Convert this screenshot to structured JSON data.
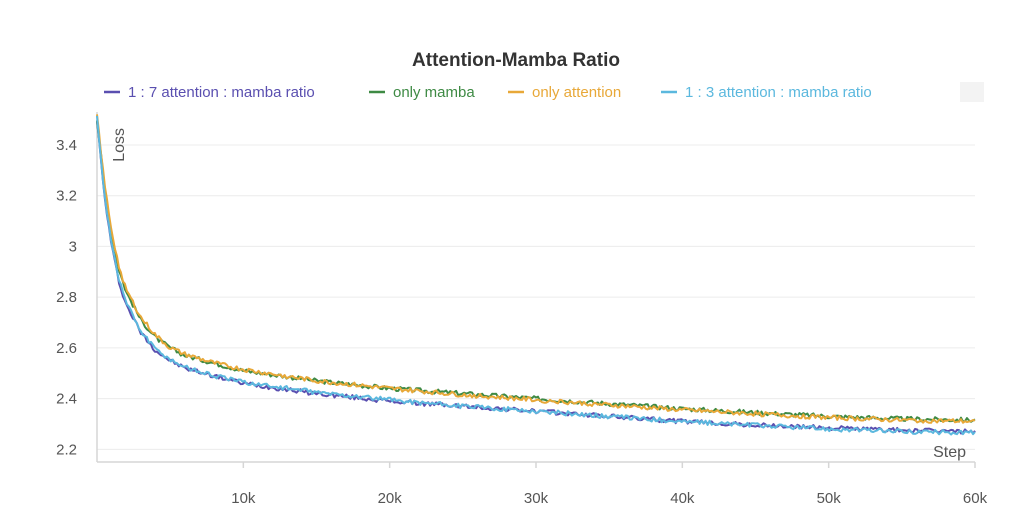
{
  "chart_data": {
    "type": "line",
    "title": "Attention-Mamba Ratio",
    "xlabel": "Step",
    "ylabel": "Loss",
    "xlim": [
      0,
      60000
    ],
    "ylim": [
      2.15,
      3.53
    ],
    "grid": true,
    "legend_position": "top",
    "x_ticks": [
      {
        "value": 10000,
        "label": "10k"
      },
      {
        "value": 20000,
        "label": "20k"
      },
      {
        "value": 30000,
        "label": "30k"
      },
      {
        "value": 40000,
        "label": "40k"
      },
      {
        "value": 50000,
        "label": "50k"
      },
      {
        "value": 60000,
        "label": "60k"
      }
    ],
    "y_ticks": [
      {
        "value": 2.2,
        "label": "2.2"
      },
      {
        "value": 2.4,
        "label": "2.4"
      },
      {
        "value": 2.6,
        "label": "2.6"
      },
      {
        "value": 2.8,
        "label": "2.8"
      },
      {
        "value": 3.0,
        "label": "3"
      },
      {
        "value": 3.2,
        "label": "3.2"
      },
      {
        "value": 3.4,
        "label": "3.4"
      }
    ],
    "x": [
      0,
      500,
      1000,
      1500,
      2000,
      3000,
      4000,
      5000,
      6000,
      8000,
      10000,
      15000,
      20000,
      25000,
      30000,
      35000,
      40000,
      45000,
      50000,
      55000,
      60000
    ],
    "series": [
      {
        "name": "1 : 7 attention : mamba ratio",
        "color": "#5a4fb0",
        "values": [
          3.5,
          3.2,
          3.0,
          2.86,
          2.77,
          2.66,
          2.59,
          2.55,
          2.52,
          2.49,
          2.46,
          2.42,
          2.39,
          2.37,
          2.35,
          2.33,
          2.31,
          2.295,
          2.285,
          2.275,
          2.27
        ]
      },
      {
        "name": "only mamba",
        "color": "#3e8a44",
        "values": [
          3.5,
          3.24,
          3.05,
          2.91,
          2.82,
          2.71,
          2.64,
          2.6,
          2.57,
          2.54,
          2.51,
          2.47,
          2.44,
          2.42,
          2.4,
          2.38,
          2.36,
          2.345,
          2.33,
          2.32,
          2.315
        ]
      },
      {
        "name": "only attention",
        "color": "#e8a838",
        "values": [
          3.52,
          3.25,
          3.06,
          2.92,
          2.83,
          2.72,
          2.65,
          2.6,
          2.575,
          2.54,
          2.515,
          2.47,
          2.44,
          2.415,
          2.395,
          2.375,
          2.355,
          2.34,
          2.325,
          2.315,
          2.31
        ]
      },
      {
        "name": "1 : 3 attention : mamba ratio",
        "color": "#5bb8de",
        "values": [
          3.51,
          3.21,
          3.01,
          2.87,
          2.78,
          2.665,
          2.595,
          2.555,
          2.525,
          2.49,
          2.465,
          2.425,
          2.395,
          2.37,
          2.35,
          2.33,
          2.31,
          2.295,
          2.28,
          2.27,
          2.265
        ]
      }
    ]
  }
}
